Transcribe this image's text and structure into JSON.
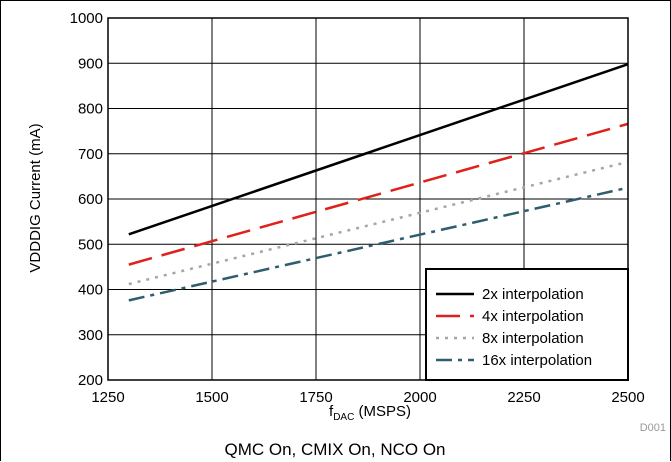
{
  "chart_data": {
    "type": "line",
    "xlabel_main": "f",
    "xlabel_sub": "DAC",
    "xlabel_rest": " (MSPS)",
    "ylabel": "VDDDIG Current (mA)",
    "caption": "QMC On, CMIX On, NCO On",
    "figure_id": "D001",
    "xlim": [
      1250,
      2500
    ],
    "ylim": [
      200,
      1000
    ],
    "x_ticks": [
      1250,
      1500,
      1750,
      2000,
      2250,
      2500
    ],
    "y_ticks": [
      200,
      300,
      400,
      500,
      600,
      700,
      800,
      900,
      1000
    ],
    "grid": true,
    "legend_position": "bottom-right",
    "series": [
      {
        "name": "2x interpolation",
        "x": [
          1300,
          2500
        ],
        "y": [
          522,
          898
        ],
        "color": "#000000",
        "dash": "solid"
      },
      {
        "name": "4x interpolation",
        "x": [
          1300,
          2500
        ],
        "y": [
          455,
          766
        ],
        "color": "#e0201b",
        "dash": "long-dash"
      },
      {
        "name": "8x interpolation",
        "x": [
          1300,
          2500
        ],
        "y": [
          412,
          682
        ],
        "color": "#a6a6a6",
        "dash": "dot"
      },
      {
        "name": "16x interpolation",
        "x": [
          1300,
          2500
        ],
        "y": [
          376,
          625
        ],
        "color": "#2e5e6e",
        "dash": "dash-dot"
      }
    ]
  }
}
